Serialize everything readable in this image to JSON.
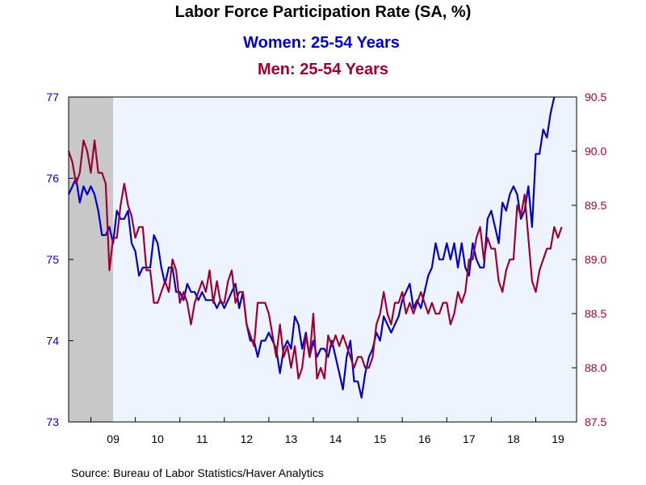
{
  "chart_data": {
    "type": "line",
    "title": "Labor Force Participation Rate (SA, %)",
    "legend": [
      {
        "label": "Women: 25-54 Years",
        "color": "#0000c8",
        "axis": "left"
      },
      {
        "label": "Men: 25-54 Years",
        "color": "#a00030",
        "axis": "right"
      }
    ],
    "x_tick_labels": [
      "09",
      "10",
      "11",
      "12",
      "13",
      "14",
      "15",
      "16",
      "17",
      "18",
      "19"
    ],
    "x_range": [
      2008.5,
      2019.917
    ],
    "recession_shading": [
      2008.5,
      2009.5
    ],
    "y_left": {
      "min": 73,
      "max": 77,
      "ticks": [
        "73",
        "74",
        "75",
        "76",
        "77"
      ],
      "color": "#0000c8"
    },
    "y_right": {
      "min": 87.5,
      "max": 90.5,
      "ticks": [
        "87.5",
        "88.0",
        "88.5",
        "89.0",
        "89.5",
        "90.0",
        "90.5"
      ],
      "color": "#a00030"
    },
    "series": [
      {
        "name": "Women: 25-54 Years",
        "axis": "left",
        "start": "2008-07",
        "values": [
          75.8,
          75.9,
          76.0,
          75.7,
          75.9,
          75.8,
          75.9,
          75.8,
          75.6,
          75.3,
          75.3,
          75.4,
          75.2,
          75.6,
          75.5,
          75.5,
          75.6,
          75.2,
          75.1,
          74.8,
          74.9,
          74.9,
          74.9,
          75.3,
          75.2,
          74.9,
          74.7,
          74.9,
          74.9,
          74.6,
          74.6,
          74.5,
          74.7,
          74.6,
          74.6,
          74.5,
          74.6,
          74.5,
          74.5,
          74.5,
          74.4,
          74.5,
          74.4,
          74.5,
          74.6,
          74.7,
          74.4,
          74.6,
          74.2,
          74.0,
          74.0,
          73.8,
          74.0,
          74.0,
          74.1,
          74.0,
          73.9,
          73.6,
          73.9,
          74.0,
          73.9,
          74.3,
          74.2,
          73.9,
          74.1,
          73.8,
          74.0,
          73.8,
          73.9,
          73.9,
          73.8,
          74.0,
          73.8,
          73.6,
          73.4,
          73.8,
          74.0,
          73.5,
          73.5,
          73.3,
          73.6,
          73.8,
          73.9,
          74.1,
          74.0,
          74.3,
          74.2,
          74.1,
          74.2,
          74.3,
          74.5,
          74.6,
          74.7,
          74.4,
          74.5,
          74.4,
          74.6,
          74.8,
          74.9,
          75.2,
          75.0,
          75.0,
          75.2,
          75.0,
          75.2,
          74.9,
          75.2,
          74.9,
          74.8,
          75.2,
          75.0,
          74.9,
          74.9,
          75.5,
          75.6,
          75.4,
          75.2,
          75.7,
          75.6,
          75.8,
          75.9,
          75.8,
          75.5,
          75.6,
          75.9,
          75.4,
          76.3,
          76.3,
          76.6,
          76.5,
          76.8,
          77.0
        ]
      },
      {
        "name": "Men: 25-54 Years",
        "axis": "right",
        "start": "2008-07",
        "values": [
          90.0,
          89.9,
          89.7,
          89.8,
          90.1,
          90.0,
          89.8,
          90.1,
          89.8,
          89.8,
          89.7,
          88.9,
          89.2,
          89.2,
          89.5,
          89.7,
          89.5,
          89.4,
          89.2,
          89.3,
          89.3,
          88.9,
          88.9,
          88.6,
          88.6,
          88.7,
          88.8,
          88.7,
          89.0,
          88.9,
          88.6,
          88.7,
          88.6,
          88.4,
          88.6,
          88.7,
          88.8,
          88.7,
          88.9,
          88.6,
          88.8,
          88.6,
          88.6,
          88.8,
          88.9,
          88.6,
          88.7,
          88.7,
          88.4,
          88.3,
          88.2,
          88.6,
          88.6,
          88.6,
          88.5,
          88.3,
          88.1,
          88.4,
          88.1,
          88.2,
          88.0,
          88.2,
          87.9,
          88.0,
          88.3,
          88.1,
          88.5,
          87.9,
          88.0,
          87.9,
          88.3,
          88.2,
          88.3,
          88.2,
          88.3,
          88.2,
          88.1,
          88.0,
          88.1,
          88.1,
          88.0,
          88.0,
          88.1,
          88.4,
          88.5,
          88.7,
          88.5,
          88.4,
          88.6,
          88.6,
          88.7,
          88.5,
          88.6,
          88.5,
          88.6,
          88.7,
          88.6,
          88.5,
          88.6,
          88.5,
          88.5,
          88.6,
          88.6,
          88.4,
          88.5,
          88.7,
          88.6,
          88.7,
          89.0,
          89.0,
          89.2,
          89.3,
          89.0,
          89.2,
          89.1,
          89.1,
          88.8,
          88.7,
          88.9,
          89.0,
          89.0,
          89.5,
          89.4,
          89.6,
          89.2,
          88.8,
          88.7,
          88.9,
          89.0,
          89.1,
          89.1,
          89.3,
          89.2,
          89.3
        ]
      }
    ],
    "source": "Source:  Bureau of Labor Statistics/Haver Analytics"
  }
}
